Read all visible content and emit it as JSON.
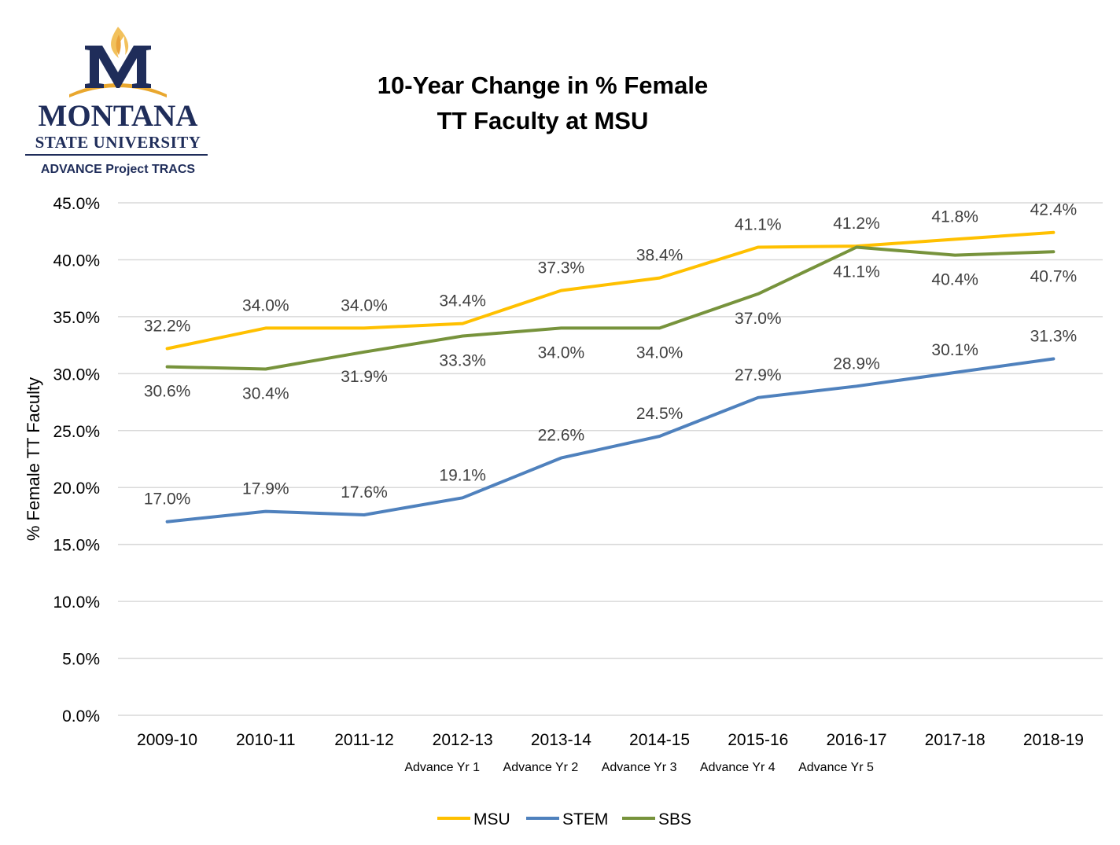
{
  "logo": {
    "mark": "M",
    "wordmark": "MONTANA",
    "university": "STATE UNIVERSITY",
    "project": "ADVANCE Project TRACS"
  },
  "chart_data": {
    "type": "line",
    "title": "10-Year Change in % Female TT Faculty at MSU",
    "title_lines": [
      "10-Year Change in % Female",
      "TT Faculty at MSU"
    ],
    "ylabel": "% Female TT Faculty",
    "xlabel": "",
    "ylim": [
      0,
      45
    ],
    "y_ticks": [
      "0.0%",
      "5.0%",
      "10.0%",
      "15.0%",
      "20.0%",
      "25.0%",
      "30.0%",
      "35.0%",
      "40.0%",
      "45.0%"
    ],
    "grid": true,
    "legend_position": "bottom",
    "categories": [
      "2009-10",
      "2010-11",
      "2011-12",
      "2012-13",
      "2013-14",
      "2014-15",
      "2015-16",
      "2016-17",
      "2017-18",
      "2018-19"
    ],
    "sublabels": [
      "",
      "",
      "",
      "Advance Yr 1",
      "Advance Yr 2",
      "Advance Yr 3",
      "Advance Yr 4",
      "Advance Yr 5",
      "",
      ""
    ],
    "series": [
      {
        "name": "MSU",
        "color": "#FFC000",
        "values": [
          32.2,
          34.0,
          34.0,
          34.4,
          37.3,
          38.4,
          41.1,
          41.2,
          41.8,
          42.4
        ],
        "labels": [
          "32.2%",
          "34.0%",
          "34.0%",
          "34.4%",
          "37.3%",
          "38.4%",
          "41.1%",
          "41.2%",
          "41.8%",
          "42.4%"
        ],
        "label_pos": "above"
      },
      {
        "name": "STEM",
        "color": "#4F81BD",
        "values": [
          17.0,
          17.9,
          17.6,
          19.1,
          22.6,
          24.5,
          27.9,
          28.9,
          30.1,
          31.3
        ],
        "labels": [
          "17.0%",
          "17.9%",
          "17.6%",
          "19.1%",
          "22.6%",
          "24.5%",
          "27.9%",
          "28.9%",
          "30.1%",
          "31.3%"
        ],
        "label_pos": "above"
      },
      {
        "name": "SBS",
        "color": "#77933C",
        "values": [
          30.6,
          30.4,
          31.9,
          33.3,
          34.0,
          34.0,
          37.0,
          41.1,
          40.4,
          40.7
        ],
        "labels": [
          "30.6%",
          "30.4%",
          "31.9%",
          "33.3%",
          "34.0%",
          "34.0%",
          "37.0%",
          "41.1%",
          "40.4%",
          "40.7%"
        ],
        "label_pos": "below"
      }
    ]
  }
}
